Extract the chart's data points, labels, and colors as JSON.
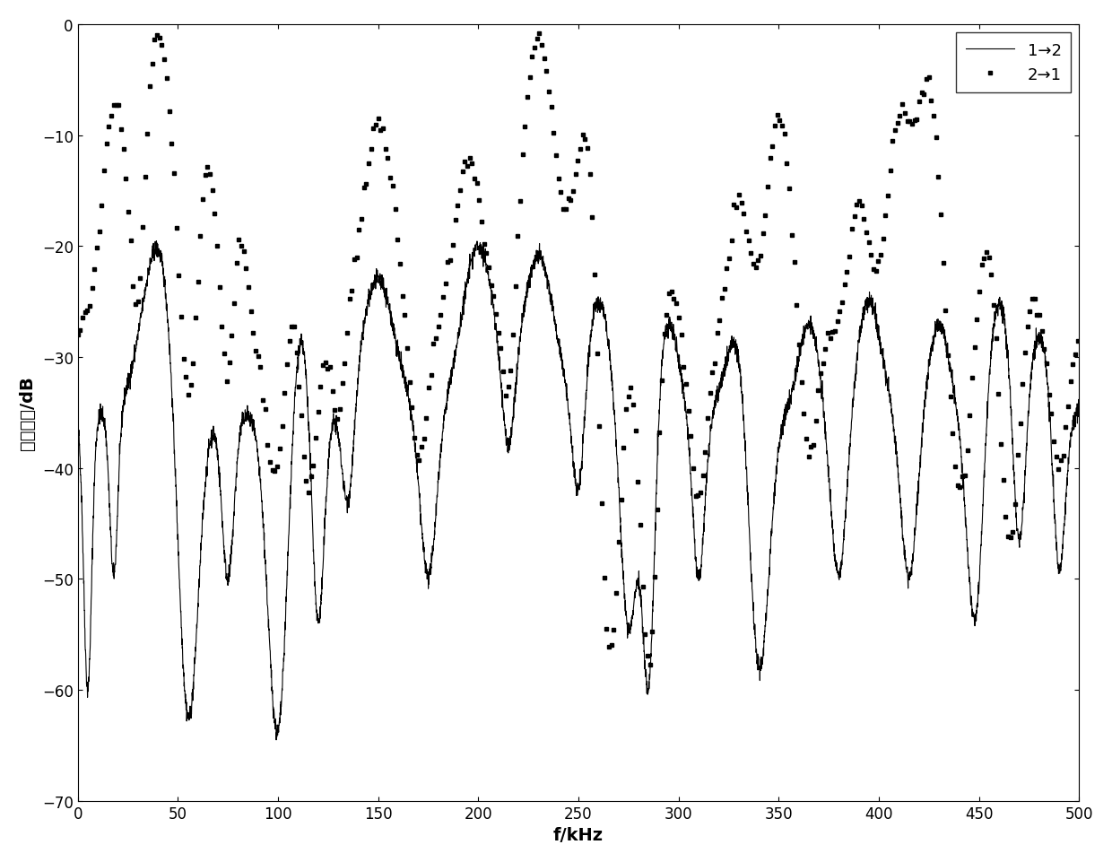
{
  "title": "",
  "xlabel": "f/kHz",
  "ylabel": "功率衰减/dB",
  "xlim": [
    0,
    500
  ],
  "ylim": [
    -70,
    0
  ],
  "xticks": [
    0,
    50,
    100,
    150,
    200,
    250,
    300,
    350,
    400,
    450,
    500
  ],
  "yticks": [
    0,
    -10,
    -20,
    -30,
    -40,
    -50,
    -60,
    -70
  ],
  "line1_label": "1→2",
  "line2_label": "2→1",
  "line1_color": "#000000",
  "line2_color": "#000000",
  "background_color": "#ffffff"
}
